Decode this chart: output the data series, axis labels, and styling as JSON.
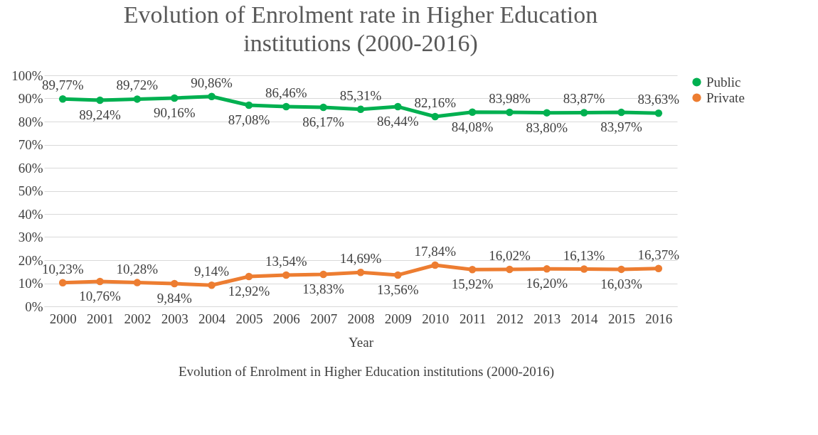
{
  "chart_data": {
    "type": "line",
    "title": "Evolution of Enrolment rate in Higher Education institutions (2000-2016)",
    "xlabel": "Year",
    "categories": [
      "2000",
      "2001",
      "2002",
      "2003",
      "2004",
      "2005",
      "2006",
      "2007",
      "2008",
      "2009",
      "2010",
      "2011",
      "2012",
      "2013",
      "2014",
      "2015",
      "2016"
    ],
    "series": [
      {
        "name": "Public",
        "color": "#00b050",
        "values": [
          89.77,
          89.24,
          89.72,
          90.16,
          90.86,
          87.08,
          86.46,
          86.17,
          85.31,
          86.44,
          82.16,
          84.08,
          83.98,
          83.8,
          83.87,
          83.97,
          83.63
        ],
        "value_labels": [
          "89,77%",
          "89,24%",
          "89,72%",
          "90,16%",
          "90,86%",
          "87,08%",
          "86,46%",
          "86,17%",
          "85,31%",
          "86,44%",
          "82,16%",
          "84,08%",
          "83,98%",
          "83,80%",
          "83,87%",
          "83,97%",
          "83,63%"
        ]
      },
      {
        "name": "Private",
        "color": "#ed7d31",
        "values": [
          10.23,
          10.76,
          10.28,
          9.84,
          9.14,
          12.92,
          13.54,
          13.83,
          14.69,
          13.56,
          17.84,
          15.92,
          16.02,
          16.2,
          16.13,
          16.03,
          16.37
        ],
        "value_labels": [
          "10,23%",
          "10,76%",
          "10,28%",
          "9,84%",
          "9,14%",
          "12,92%",
          "13,54%",
          "13,83%",
          "14,69%",
          "13,56%",
          "17,84%",
          "15,92%",
          "16,02%",
          "16,20%",
          "16,13%",
          "16,03%",
          "16,37%"
        ]
      }
    ],
    "ylim": [
      0,
      100
    ],
    "yticks": [
      {
        "value": 0,
        "label": "0%"
      },
      {
        "value": 10,
        "label": "10%"
      },
      {
        "value": 20,
        "label": "20%"
      },
      {
        "value": 30,
        "label": "30%"
      },
      {
        "value": 40,
        "label": "40%"
      },
      {
        "value": 50,
        "label": "50%"
      },
      {
        "value": 60,
        "label": "60%"
      },
      {
        "value": 70,
        "label": "70%"
      },
      {
        "value": 80,
        "label": "80%"
      },
      {
        "value": 90,
        "label": "90%"
      },
      {
        "value": 100,
        "label": "100%"
      }
    ],
    "grid": "y",
    "legend": "right",
    "marker": "circle",
    "line_style": "solid",
    "annotations": [
      "Evolution of Enrolment in Higher Education institutions (2000-2016)"
    ]
  }
}
